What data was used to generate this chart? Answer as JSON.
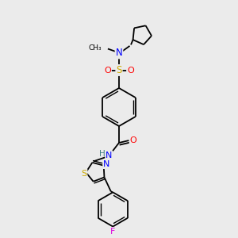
{
  "background_color": "#ebebeb",
  "colors": {
    "N": "#0000ff",
    "O": "#ff0000",
    "S": "#ccaa00",
    "F": "#dd00dd",
    "H": "#408080",
    "C": "#000000"
  },
  "figsize": [
    3.0,
    3.0
  ],
  "dpi": 100
}
